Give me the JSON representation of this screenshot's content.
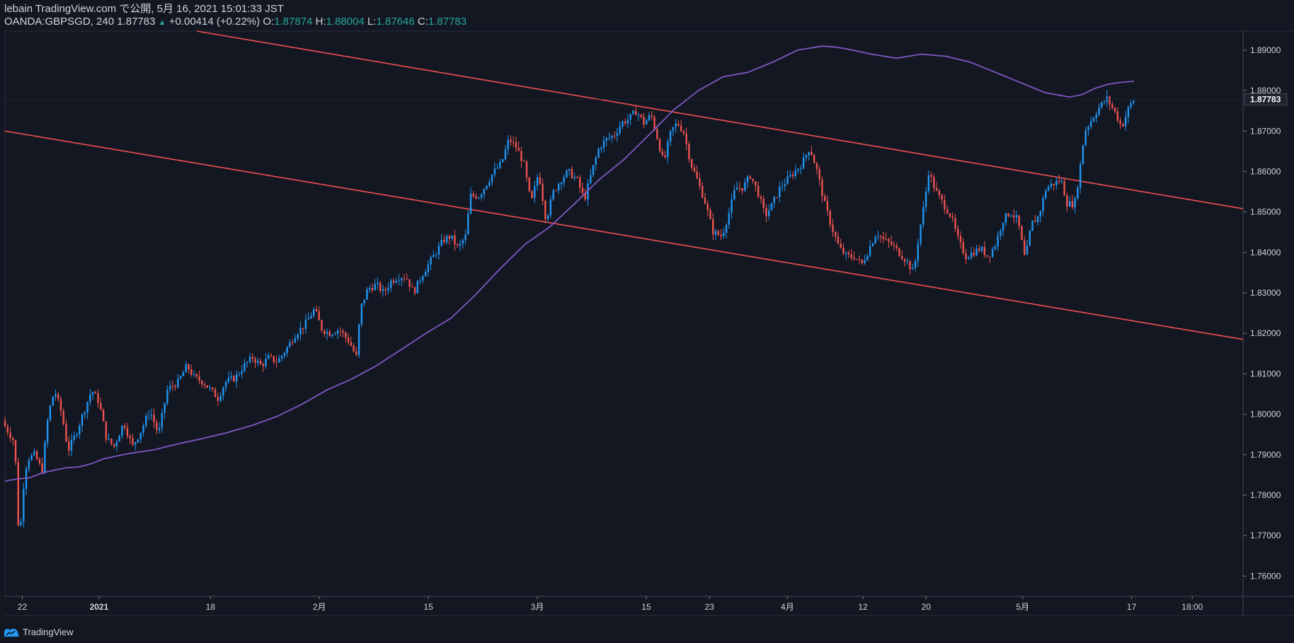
{
  "header": {
    "line1": "lebain TradingView.com で公開, 5月 16, 2021 15:01:33 JST",
    "symbol": "OANDA:GBPSGD, 240",
    "last": "1.87783",
    "change": "+0.00414 (+0.22%)",
    "o_label": "O:",
    "o_value": "1.87874",
    "h_label": "H:",
    "h_value": "1.88004",
    "l_label": "L:",
    "l_value": "1.87646",
    "c_label": "C:",
    "c_value": "1.87783"
  },
  "footer": {
    "brand": "TradingView"
  },
  "colors": {
    "background": "#131722",
    "up": "#2196f3",
    "down": "#ef5350",
    "ma": "#7e57c2",
    "channel": "#f05050",
    "axis_text": "#d1d4dc",
    "last_tag_bg": "#1e222d"
  },
  "chart_data": {
    "type": "candlestick",
    "title": "OANDA:GBPSGD, 240",
    "ylim": [
      1.755,
      1.8947
    ],
    "yticks": [
      "1.76000",
      "1.77000",
      "1.78000",
      "1.79000",
      "1.80000",
      "1.81000",
      "1.82000",
      "1.83000",
      "1.84000",
      "1.85000",
      "1.86000",
      "1.87000",
      "1.88000",
      "1.89000"
    ],
    "last_price_label": "1.87783",
    "xlim": [
      0,
      100
    ],
    "xticks": [
      {
        "x": 1.4,
        "label": "22"
      },
      {
        "x": 7.6,
        "label": "2021"
      },
      {
        "x": 16.6,
        "label": "18"
      },
      {
        "x": 25.4,
        "label": "2月"
      },
      {
        "x": 34.2,
        "label": "15"
      },
      {
        "x": 43.0,
        "label": "3月"
      },
      {
        "x": 51.8,
        "label": "15"
      },
      {
        "x": 56.9,
        "label": "23"
      },
      {
        "x": 63.2,
        "label": "4月"
      },
      {
        "x": 69.3,
        "label": "12"
      },
      {
        "x": 74.4,
        "label": "20"
      },
      {
        "x": 82.2,
        "label": "5月"
      },
      {
        "x": 91.0,
        "label": "17"
      },
      {
        "x": 95.9,
        "label": "18:00"
      }
    ],
    "close_path": [
      [
        0.0,
        1.797
      ],
      [
        0.8,
        1.793
      ],
      [
        1.0,
        1.776
      ],
      [
        1.2,
        1.768
      ],
      [
        1.4,
        1.78
      ],
      [
        1.8,
        1.789
      ],
      [
        2.4,
        1.79
      ],
      [
        3.0,
        1.786
      ],
      [
        3.5,
        1.8
      ],
      [
        4.0,
        1.806
      ],
      [
        4.6,
        1.8
      ],
      [
        5.1,
        1.791
      ],
      [
        5.7,
        1.795
      ],
      [
        6.3,
        1.8
      ],
      [
        7.0,
        1.806
      ],
      [
        7.6,
        1.803
      ],
      [
        8.2,
        1.794
      ],
      [
        8.8,
        1.792
      ],
      [
        9.6,
        1.798
      ],
      [
        10.3,
        1.792
      ],
      [
        11.0,
        1.796
      ],
      [
        11.7,
        1.801
      ],
      [
        12.4,
        1.795
      ],
      [
        13.1,
        1.806
      ],
      [
        14.0,
        1.808
      ],
      [
        14.7,
        1.812
      ],
      [
        15.3,
        1.809
      ],
      [
        16.0,
        1.808
      ],
      [
        16.6,
        1.806
      ],
      [
        17.2,
        1.804
      ],
      [
        17.8,
        1.808
      ],
      [
        18.6,
        1.809
      ],
      [
        19.3,
        1.812
      ],
      [
        20.0,
        1.814
      ],
      [
        20.7,
        1.812
      ],
      [
        21.3,
        1.814
      ],
      [
        22.0,
        1.813
      ],
      [
        22.7,
        1.816
      ],
      [
        23.5,
        1.82
      ],
      [
        24.2,
        1.822
      ],
      [
        25.0,
        1.826
      ],
      [
        25.6,
        1.821
      ],
      [
        26.2,
        1.82
      ],
      [
        27.0,
        1.821
      ],
      [
        27.8,
        1.818
      ],
      [
        28.4,
        1.814
      ],
      [
        28.7,
        1.826
      ],
      [
        29.3,
        1.831
      ],
      [
        30.0,
        1.832
      ],
      [
        30.6,
        1.83
      ],
      [
        31.2,
        1.833
      ],
      [
        31.8,
        1.834
      ],
      [
        32.4,
        1.834
      ],
      [
        33.0,
        1.83
      ],
      [
        33.6,
        1.834
      ],
      [
        34.2,
        1.837
      ],
      [
        34.8,
        1.84
      ],
      [
        35.4,
        1.843
      ],
      [
        36.0,
        1.844
      ],
      [
        36.6,
        1.841
      ],
      [
        37.2,
        1.844
      ],
      [
        37.6,
        1.854
      ],
      [
        38.3,
        1.854
      ],
      [
        38.9,
        1.857
      ],
      [
        39.5,
        1.86
      ],
      [
        40.1,
        1.862
      ],
      [
        40.7,
        1.868
      ],
      [
        41.3,
        1.866
      ],
      [
        41.9,
        1.862
      ],
      [
        42.5,
        1.852
      ],
      [
        43.1,
        1.86
      ],
      [
        43.7,
        1.848
      ],
      [
        44.3,
        1.855
      ],
      [
        44.9,
        1.858
      ],
      [
        45.5,
        1.86
      ],
      [
        46.2,
        1.858
      ],
      [
        46.8,
        1.853
      ],
      [
        47.4,
        1.86
      ],
      [
        48.0,
        1.866
      ],
      [
        48.6,
        1.868
      ],
      [
        49.2,
        1.869
      ],
      [
        49.8,
        1.872
      ],
      [
        50.4,
        1.873
      ],
      [
        51.0,
        1.875
      ],
      [
        51.6,
        1.872
      ],
      [
        52.2,
        1.874
      ],
      [
        52.8,
        1.867
      ],
      [
        53.2,
        1.862
      ],
      [
        53.8,
        1.87
      ],
      [
        54.3,
        1.872
      ],
      [
        54.8,
        1.87
      ],
      [
        55.4,
        1.862
      ],
      [
        55.9,
        1.858
      ],
      [
        56.5,
        1.853
      ],
      [
        57.2,
        1.845
      ],
      [
        57.9,
        1.844
      ],
      [
        58.5,
        1.85
      ],
      [
        59.0,
        1.856
      ],
      [
        59.6,
        1.856
      ],
      [
        60.2,
        1.859
      ],
      [
        60.8,
        1.855
      ],
      [
        61.4,
        1.849
      ],
      [
        62.0,
        1.852
      ],
      [
        62.6,
        1.856
      ],
      [
        63.2,
        1.858
      ],
      [
        63.8,
        1.86
      ],
      [
        64.4,
        1.862
      ],
      [
        65.0,
        1.866
      ],
      [
        65.6,
        1.86
      ],
      [
        66.2,
        1.852
      ],
      [
        66.8,
        1.846
      ],
      [
        67.4,
        1.841
      ],
      [
        68.0,
        1.839
      ],
      [
        68.6,
        1.839
      ],
      [
        69.2,
        1.837
      ],
      [
        69.8,
        1.841
      ],
      [
        70.4,
        1.845
      ],
      [
        71.0,
        1.843
      ],
      [
        71.6,
        1.842
      ],
      [
        72.2,
        1.84
      ],
      [
        72.8,
        1.838
      ],
      [
        73.4,
        1.835
      ],
      [
        73.8,
        1.844
      ],
      [
        74.3,
        1.853
      ],
      [
        74.6,
        1.86
      ],
      [
        75.2,
        1.855
      ],
      [
        75.8,
        1.852
      ],
      [
        76.4,
        1.849
      ],
      [
        77.0,
        1.843
      ],
      [
        77.6,
        1.839
      ],
      [
        78.2,
        1.84
      ],
      [
        78.8,
        1.841
      ],
      [
        79.4,
        1.839
      ],
      [
        80.0,
        1.842
      ],
      [
        80.6,
        1.848
      ],
      [
        81.2,
        1.85
      ],
      [
        81.8,
        1.848
      ],
      [
        82.4,
        1.838
      ],
      [
        82.9,
        1.847
      ],
      [
        83.5,
        1.849
      ],
      [
        84.1,
        1.856
      ],
      [
        84.7,
        1.857
      ],
      [
        85.3,
        1.858
      ],
      [
        85.8,
        1.852
      ],
      [
        86.4,
        1.852
      ],
      [
        86.8,
        1.86
      ],
      [
        87.2,
        1.87
      ],
      [
        87.8,
        1.873
      ],
      [
        88.4,
        1.876
      ],
      [
        89.0,
        1.878
      ],
      [
        89.6,
        1.875
      ],
      [
        90.2,
        1.871
      ],
      [
        90.8,
        1.876
      ],
      [
        91.2,
        1.8778
      ]
    ],
    "moving_average": [
      [
        0.0,
        1.7835
      ],
      [
        1.0,
        1.784
      ],
      [
        2.0,
        1.7843
      ],
      [
        3.0,
        1.7855
      ],
      [
        4.0,
        1.7862
      ],
      [
        5.0,
        1.7868
      ],
      [
        6.0,
        1.787
      ],
      [
        7.0,
        1.7878
      ],
      [
        8.0,
        1.789
      ],
      [
        10.0,
        1.7903
      ],
      [
        12.0,
        1.7912
      ],
      [
        14.0,
        1.7927
      ],
      [
        16.0,
        1.794
      ],
      [
        18.0,
        1.7955
      ],
      [
        20.0,
        1.7973
      ],
      [
        22.0,
        1.7995
      ],
      [
        24.0,
        1.8025
      ],
      [
        26.0,
        1.806
      ],
      [
        28.0,
        1.8087
      ],
      [
        30.0,
        1.812
      ],
      [
        32.0,
        1.816
      ],
      [
        34.0,
        1.82
      ],
      [
        36.0,
        1.8237
      ],
      [
        38.0,
        1.8295
      ],
      [
        40.0,
        1.836
      ],
      [
        42.0,
        1.842
      ],
      [
        44.0,
        1.8463
      ],
      [
        46.0,
        1.852
      ],
      [
        48.0,
        1.858
      ],
      [
        50.0,
        1.863
      ],
      [
        52.0,
        1.869
      ],
      [
        54.0,
        1.8752
      ],
      [
        56.0,
        1.88
      ],
      [
        58.0,
        1.8834
      ],
      [
        60.0,
        1.8845
      ],
      [
        62.0,
        1.887
      ],
      [
        64.0,
        1.89
      ],
      [
        66.0,
        1.891
      ],
      [
        67.0,
        1.8908
      ],
      [
        68.0,
        1.8903
      ],
      [
        70.0,
        1.889
      ],
      [
        72.0,
        1.888
      ],
      [
        74.0,
        1.889
      ],
      [
        76.0,
        1.8885
      ],
      [
        78.0,
        1.887
      ],
      [
        80.0,
        1.8845
      ],
      [
        82.0,
        1.882
      ],
      [
        84.0,
        1.8795
      ],
      [
        86.0,
        1.8784
      ],
      [
        87.0,
        1.879
      ],
      [
        88.0,
        1.8805
      ],
      [
        89.0,
        1.8815
      ],
      [
        90.0,
        1.882
      ],
      [
        91.2,
        1.8823
      ]
    ],
    "channel_upper": [
      [
        15.5,
        1.8947
      ],
      [
        100.0,
        1.8508
      ]
    ],
    "channel_lower": [
      [
        0.0,
        1.87
      ],
      [
        100.0,
        1.8185
      ]
    ]
  }
}
